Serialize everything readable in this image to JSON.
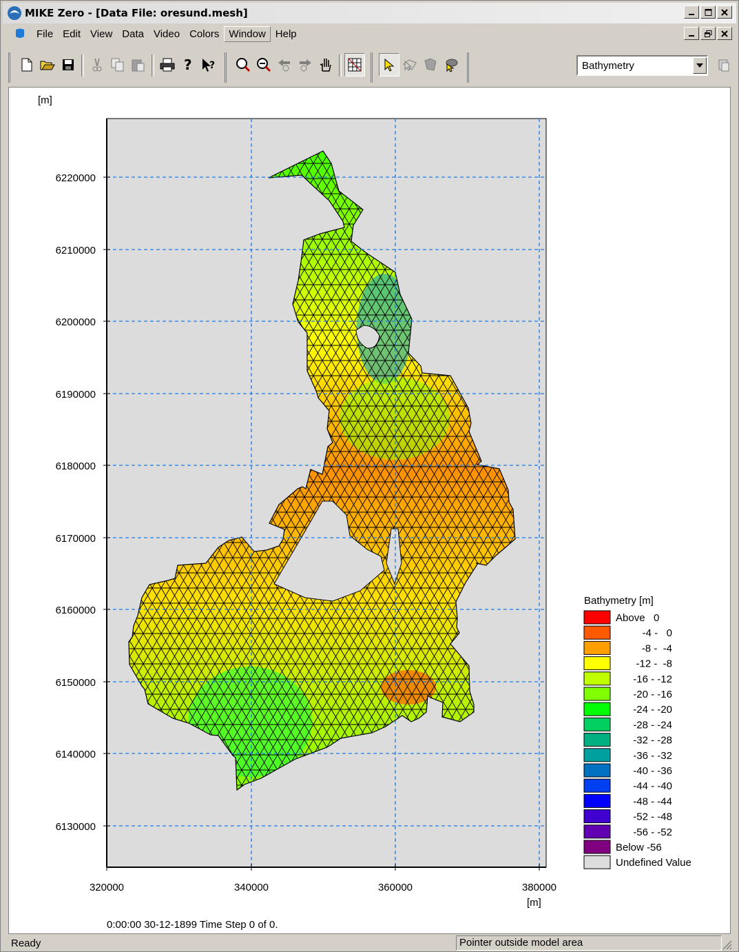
{
  "window": {
    "title": "MIKE Zero - [Data File: oresund.mesh]"
  },
  "menu": {
    "items": [
      "File",
      "Edit",
      "View",
      "Data",
      "Video",
      "Colors",
      "Window",
      "Help"
    ]
  },
  "toolbar": {
    "icons": [
      "new-file-icon",
      "open-folder-icon",
      "save-icon",
      "cut-icon",
      "copy-icon",
      "paste-icon",
      "print-icon",
      "help-icon",
      "context-help-icon",
      "zoom-in-icon",
      "zoom-out-icon",
      "zoom-previous-icon",
      "zoom-next-icon",
      "pan-hand-icon",
      "show-mesh-icon",
      "select-pointer-icon",
      "select-polygon-icon",
      "select-region-icon",
      "select-lasso-icon"
    ],
    "item_select": {
      "value": "Bathymetry"
    }
  },
  "plot": {
    "y_unit": "[m]",
    "x_unit": "[m]",
    "x_ticks": [
      "320000",
      "340000",
      "360000",
      "380000"
    ],
    "y_ticks": [
      "6220000",
      "6210000",
      "6200000",
      "6190000",
      "6180000",
      "6170000",
      "6160000",
      "6150000",
      "6140000",
      "6130000"
    ],
    "time_label": "0:00:00 30-12-1899  Time Step 0 of 0."
  },
  "legend": {
    "title": "Bathymetry [m]",
    "items": [
      {
        "label": "Above   0",
        "color": "#ff0000"
      },
      {
        "label": "-4 -   0",
        "color": "#ff5a00"
      },
      {
        "label": "-8 -  -4",
        "color": "#ffa000"
      },
      {
        "label": "-12 -  -8",
        "color": "#ffff00"
      },
      {
        "label": "-16 - -12",
        "color": "#c0ff00"
      },
      {
        "label": "-20 - -16",
        "color": "#80ff00"
      },
      {
        "label": "-24 - -20",
        "color": "#00ff00"
      },
      {
        "label": "-28 - -24",
        "color": "#00d060"
      },
      {
        "label": "-32 - -28",
        "color": "#00b080"
      },
      {
        "label": "-36 - -32",
        "color": "#00a0a0"
      },
      {
        "label": "-40 - -36",
        "color": "#0070c0"
      },
      {
        "label": "-44 - -40",
        "color": "#0040f0"
      },
      {
        "label": "-48 - -44",
        "color": "#0000ff"
      },
      {
        "label": "-52 - -48",
        "color": "#4000d0"
      },
      {
        "label": "-56 - -52",
        "color": "#6000b0"
      },
      {
        "label": "Below -56",
        "color": "#800080"
      },
      {
        "label": "Undefined Value",
        "color": "#dcdcdc"
      }
    ]
  },
  "status": {
    "left": "Ready",
    "right": "Pointer outside model area"
  }
}
